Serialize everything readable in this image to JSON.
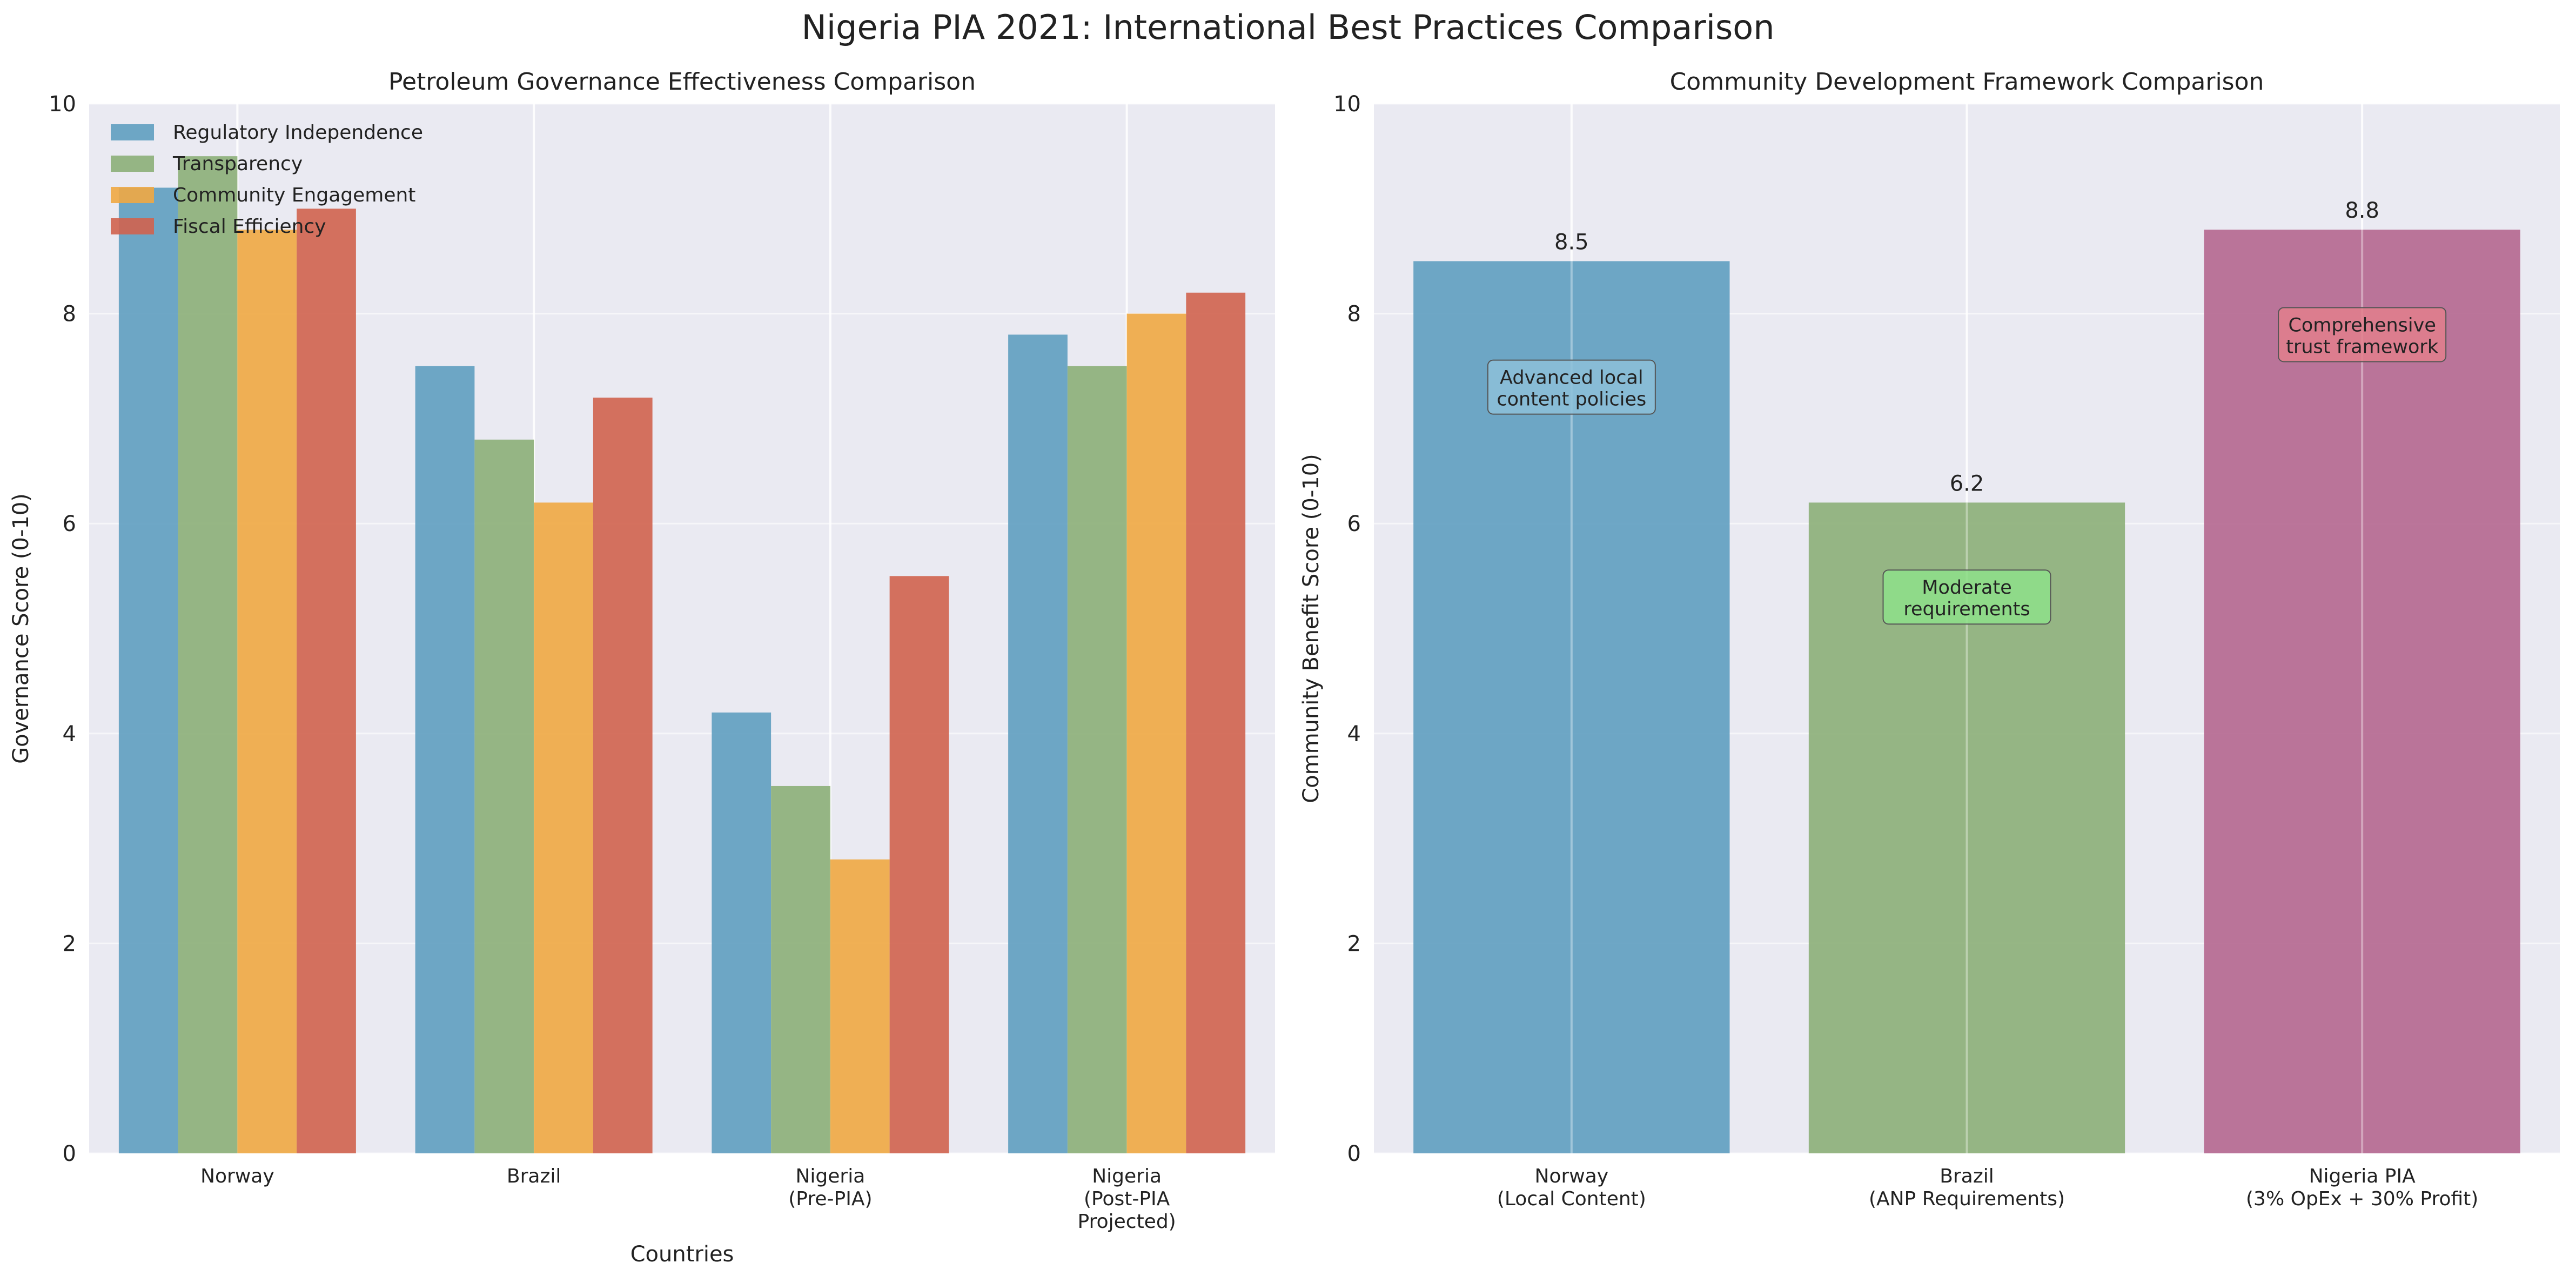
{
  "figure_title": "Nigeria PIA 2021: International Best Practices Comparison",
  "colors": {
    "plot_background": "#EAEAF2",
    "grid": "#FFFFFF",
    "series": [
      "#5F9EC0",
      "#8CAF78",
      "#F0A842",
      "#D0634E"
    ],
    "community_bars": [
      "#5F9EC0",
      "#8CAF78",
      "#B5678F"
    ],
    "annotation_fills": [
      "#8DBFD8",
      "#8EE08A",
      "#E27F8C"
    ]
  },
  "chart_data": [
    {
      "type": "bar",
      "title": "Petroleum Governance Effectiveness Comparison",
      "xlabel": "Countries",
      "ylabel": "Governance Score (0-10)",
      "ylim": [
        0,
        10
      ],
      "yticks": [
        "0",
        "2",
        "4",
        "6",
        "8",
        "10"
      ],
      "categories": [
        "Norway",
        "Brazil",
        "Nigeria\n(Pre-PIA)",
        "Nigeria\n(Post-PIA\nProjected)"
      ],
      "series": [
        {
          "name": "Regulatory Independence",
          "values": [
            9.2,
            7.5,
            4.2,
            7.8
          ]
        },
        {
          "name": "Transparency",
          "values": [
            9.5,
            6.8,
            3.5,
            7.5
          ]
        },
        {
          "name": "Community Engagement",
          "values": [
            8.8,
            6.2,
            2.8,
            8.0
          ]
        },
        {
          "name": "Fiscal Efficiency",
          "values": [
            9.0,
            7.2,
            5.5,
            8.2
          ]
        }
      ],
      "legend": "top-left",
      "grid": true
    },
    {
      "type": "bar",
      "title": "Community Development Framework Comparison",
      "xlabel": "",
      "ylabel": "Community Benefit Score (0-10)",
      "ylim": [
        0,
        10
      ],
      "yticks": [
        "0",
        "2",
        "4",
        "6",
        "8",
        "10"
      ],
      "categories": [
        "Norway\n(Local Content)",
        "Brazil\n(ANP Requirements)",
        "Nigeria PIA\n(3% OpEx + 30% Profit)"
      ],
      "values": [
        8.5,
        6.2,
        8.8
      ],
      "value_labels": [
        "8.5",
        "6.2",
        "8.8"
      ],
      "annotations": [
        {
          "text": "Advanced local\ncontent policies",
          "y": 7.3
        },
        {
          "text": "Moderate\nrequirements",
          "y": 5.3
        },
        {
          "text": "Comprehensive\ntrust framework",
          "y": 7.8
        }
      ],
      "grid": true
    }
  ]
}
